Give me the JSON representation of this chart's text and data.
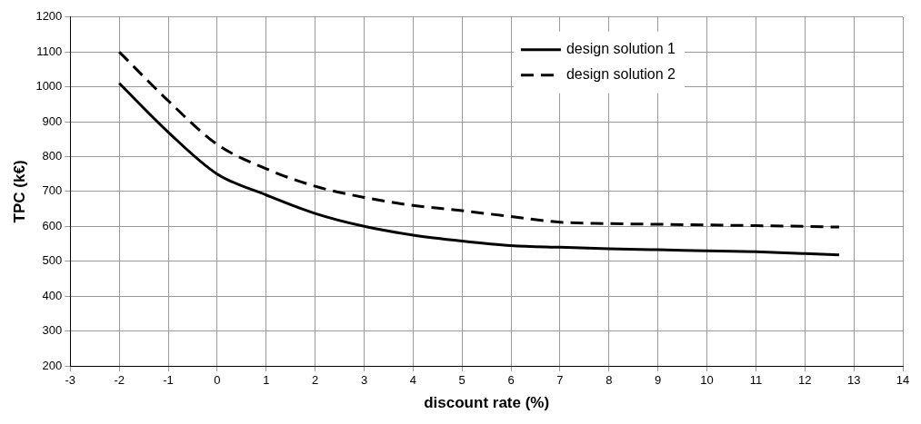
{
  "chart_data": {
    "type": "line",
    "xlabel": "discount rate (%)",
    "ylabel": "TPC (k€)",
    "xlim": [
      -3,
      14
    ],
    "xticks": [
      -3,
      -2,
      -1,
      0,
      1,
      2,
      3,
      4,
      5,
      6,
      7,
      8,
      9,
      10,
      11,
      12,
      13,
      14
    ],
    "ylim": [
      200,
      1200
    ],
    "yticks": [
      200,
      300,
      400,
      500,
      600,
      700,
      800,
      900,
      1000,
      1100,
      1200
    ],
    "grid": true,
    "legend": "top right",
    "marker": "none",
    "x": [
      -2,
      -1,
      0,
      1,
      2,
      3,
      4,
      5,
      6,
      7,
      8,
      9,
      10,
      11,
      12,
      12.7
    ],
    "series": [
      {
        "name": "design solution 1",
        "color": "#000000",
        "line_style": "solid",
        "values": [
          1010,
          870,
          750,
          690,
          637,
          600,
          575,
          558,
          545,
          540,
          536,
          533,
          530,
          527,
          522,
          518
        ]
      },
      {
        "name": "design solution 2",
        "color": "#000000",
        "line_style": "dashed",
        "values": [
          1100,
          960,
          835,
          765,
          715,
          683,
          660,
          645,
          628,
          612,
          608,
          606,
          604,
          602,
          600,
          598
        ]
      }
    ]
  }
}
